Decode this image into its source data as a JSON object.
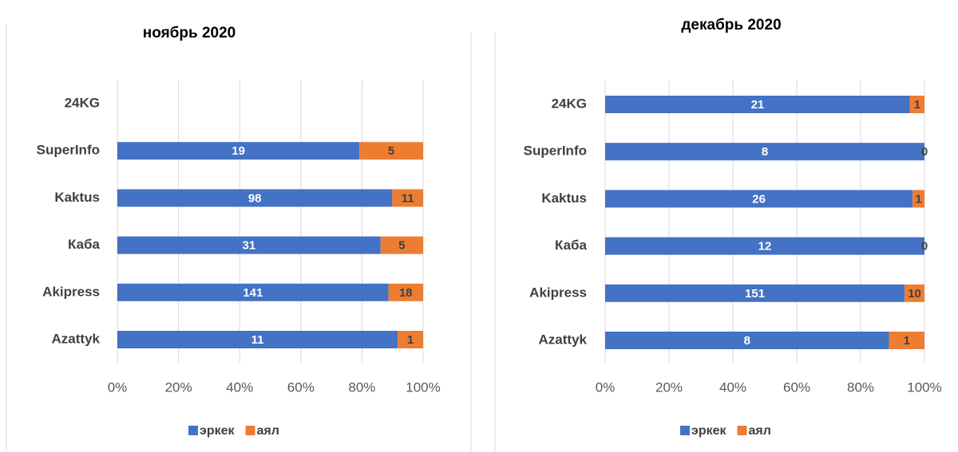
{
  "chart_data": [
    {
      "type": "bar",
      "orientation": "horizontal",
      "stack": "percent",
      "title": "ноябрь 2020",
      "categories": [
        "24KG",
        "SuperInfo",
        "Kaktus",
        "Каба",
        "Akipress",
        "Azattyk"
      ],
      "series": [
        {
          "name": "эркек",
          "color": "#4472c4",
          "values": [
            null,
            19,
            98,
            31,
            141,
            11
          ]
        },
        {
          "name": "аял",
          "color": "#ed7d31",
          "values": [
            null,
            5,
            11,
            5,
            18,
            1
          ]
        }
      ],
      "xlim": [
        0,
        100
      ],
      "xticks": [
        {
          "value": 0,
          "label": "0%"
        },
        {
          "value": 20,
          "label": "20%"
        },
        {
          "value": 40,
          "label": "40%"
        },
        {
          "value": 60,
          "label": "60%"
        },
        {
          "value": 80,
          "label": "80%"
        },
        {
          "value": 100,
          "label": "100%"
        }
      ],
      "grid": true,
      "legend": "bottom"
    },
    {
      "type": "bar",
      "orientation": "horizontal",
      "stack": "percent",
      "title": "декабрь 2020",
      "categories": [
        "24KG",
        "SuperInfo",
        "Kaktus",
        "Каба",
        "Akipress",
        "Azattyk"
      ],
      "series": [
        {
          "name": "эркек",
          "color": "#4472c4",
          "values": [
            21,
            8,
            26,
            12,
            151,
            8
          ]
        },
        {
          "name": "аял",
          "color": "#ed7d31",
          "values": [
            1,
            0,
            1,
            0,
            10,
            1
          ]
        }
      ],
      "xlim": [
        0,
        100
      ],
      "xticks": [
        {
          "value": 0,
          "label": "0%"
        },
        {
          "value": 20,
          "label": "20%"
        },
        {
          "value": 40,
          "label": "40%"
        },
        {
          "value": 60,
          "label": "60%"
        },
        {
          "value": 80,
          "label": "80%"
        },
        {
          "value": 100,
          "label": "100%"
        }
      ],
      "grid": true,
      "legend": "bottom"
    }
  ]
}
